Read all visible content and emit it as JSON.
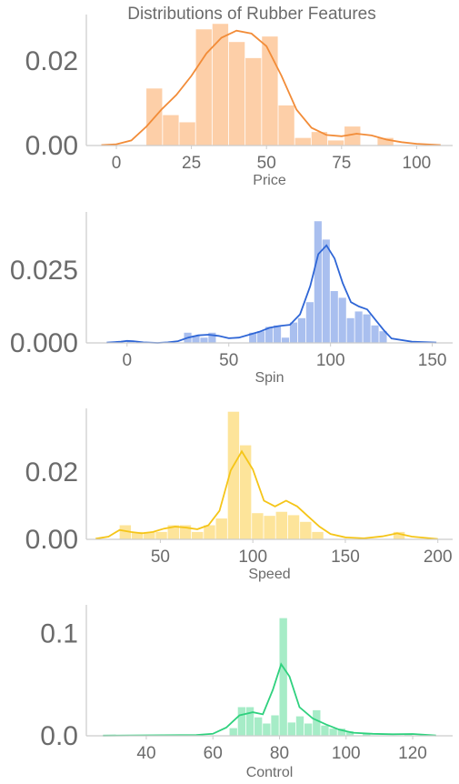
{
  "suptitle": "Distributions of Rubber Features",
  "chart_data": [
    {
      "type": "bar",
      "subtype": "histogram with KDE",
      "xlabel": "Price",
      "color": "#f28c38",
      "bar_color": "#fdcfa8",
      "xlim": [
        -10,
        112
      ],
      "ylim": [
        0,
        0.031
      ],
      "xticks": [
        0,
        25,
        50,
        75,
        100
      ],
      "xtick_labels": [
        "0",
        "25",
        "50",
        "75",
        "100"
      ],
      "yticks": [
        0.0,
        0.02
      ],
      "ytick_labels": [
        "0.00",
        "0.02"
      ],
      "bins": [
        {
          "x0": 10,
          "x1": 15.5,
          "y": 0.0135
        },
        {
          "x0": 15.5,
          "x1": 21,
          "y": 0.0072
        },
        {
          "x0": 21,
          "x1": 26.5,
          "y": 0.0055
        },
        {
          "x0": 26.5,
          "x1": 32,
          "y": 0.0275
        },
        {
          "x0": 32,
          "x1": 37.5,
          "y": 0.0288
        },
        {
          "x0": 37.5,
          "x1": 43,
          "y": 0.0245
        },
        {
          "x0": 43,
          "x1": 48.5,
          "y": 0.0207
        },
        {
          "x0": 48.5,
          "x1": 54,
          "y": 0.0258
        },
        {
          "x0": 54,
          "x1": 59.5,
          "y": 0.0095
        },
        {
          "x0": 59.5,
          "x1": 65,
          "y": 0.0018
        },
        {
          "x0": 65,
          "x1": 70.5,
          "y": 0.0032
        },
        {
          "x0": 70.5,
          "x1": 76,
          "y": 0.0012
        },
        {
          "x0": 76,
          "x1": 81.5,
          "y": 0.0045
        },
        {
          "x0": 81.5,
          "x1": 87,
          "y": 0.0
        },
        {
          "x0": 87,
          "x1": 92.5,
          "y": 0.0018
        }
      ],
      "kde": [
        [
          -5,
          0.0001
        ],
        [
          0,
          0.0003
        ],
        [
          5,
          0.0012
        ],
        [
          10,
          0.0045
        ],
        [
          15,
          0.0085
        ],
        [
          20,
          0.012
        ],
        [
          25,
          0.0165
        ],
        [
          30,
          0.0218
        ],
        [
          35,
          0.0255
        ],
        [
          40,
          0.0272
        ],
        [
          45,
          0.0265
        ],
        [
          50,
          0.0235
        ],
        [
          55,
          0.0165
        ],
        [
          60,
          0.0085
        ],
        [
          65,
          0.0042
        ],
        [
          70,
          0.0025
        ],
        [
          75,
          0.0022
        ],
        [
          80,
          0.0028
        ],
        [
          85,
          0.0024
        ],
        [
          90,
          0.0014
        ],
        [
          95,
          0.0008
        ],
        [
          100,
          0.0004
        ],
        [
          108,
          0.0001
        ]
      ]
    },
    {
      "type": "bar",
      "subtype": "histogram with KDE",
      "xlabel": "Spin",
      "color": "#2f66d6",
      "bar_color": "#a9bfef",
      "xlim": [
        -20,
        160
      ],
      "ylim": [
        0,
        0.045
      ],
      "xticks": [
        0,
        50,
        100,
        150
      ],
      "xtick_labels": [
        "0",
        "50",
        "100",
        "150"
      ],
      "yticks": [
        0.0,
        0.025
      ],
      "ytick_labels": [
        "0.000",
        "0.025"
      ],
      "bins": [
        {
          "x0": 0,
          "x1": 4,
          "y": 0.0005
        },
        {
          "x0": 4,
          "x1": 8,
          "y": 0.0
        },
        {
          "x0": 28,
          "x1": 32,
          "y": 0.0035
        },
        {
          "x0": 32,
          "x1": 36,
          "y": 0.0025
        },
        {
          "x0": 36,
          "x1": 40,
          "y": 0.0018
        },
        {
          "x0": 40,
          "x1": 44,
          "y": 0.0035
        },
        {
          "x0": 60,
          "x1": 64,
          "y": 0.0035
        },
        {
          "x0": 64,
          "x1": 68,
          "y": 0.004
        },
        {
          "x0": 68,
          "x1": 72,
          "y": 0.0055
        },
        {
          "x0": 72,
          "x1": 76,
          "y": 0.006
        },
        {
          "x0": 76,
          "x1": 80,
          "y": 0.0018
        },
        {
          "x0": 80,
          "x1": 84,
          "y": 0.007
        },
        {
          "x0": 84,
          "x1": 88,
          "y": 0.0085
        },
        {
          "x0": 88,
          "x1": 92,
          "y": 0.014
        },
        {
          "x0": 92,
          "x1": 96,
          "y": 0.0418
        },
        {
          "x0": 96,
          "x1": 100,
          "y": 0.0355
        },
        {
          "x0": 100,
          "x1": 104,
          "y": 0.0178
        },
        {
          "x0": 104,
          "x1": 108,
          "y": 0.0155
        },
        {
          "x0": 108,
          "x1": 112,
          "y": 0.0085
        },
        {
          "x0": 112,
          "x1": 116,
          "y": 0.0108
        },
        {
          "x0": 116,
          "x1": 120,
          "y": 0.0098
        },
        {
          "x0": 120,
          "x1": 124,
          "y": 0.006
        },
        {
          "x0": 124,
          "x1": 128,
          "y": 0.004
        }
      ],
      "kde": [
        [
          -10,
          0.0001
        ],
        [
          -3,
          0.0004
        ],
        [
          0,
          0.0007
        ],
        [
          3,
          0.0006
        ],
        [
          8,
          0.0002
        ],
        [
          15,
          0.0
        ],
        [
          20,
          0.0002
        ],
        [
          25,
          0.0006
        ],
        [
          30,
          0.0018
        ],
        [
          35,
          0.0026
        ],
        [
          40,
          0.0028
        ],
        [
          45,
          0.0024
        ],
        [
          50,
          0.0016
        ],
        [
          55,
          0.0018
        ],
        [
          60,
          0.0028
        ],
        [
          65,
          0.0038
        ],
        [
          70,
          0.0052
        ],
        [
          75,
          0.0058
        ],
        [
          80,
          0.0062
        ],
        [
          85,
          0.0098
        ],
        [
          90,
          0.0195
        ],
        [
          94,
          0.0305
        ],
        [
          98,
          0.0335
        ],
        [
          102,
          0.029
        ],
        [
          106,
          0.0205
        ],
        [
          110,
          0.014
        ],
        [
          114,
          0.0125
        ],
        [
          118,
          0.0115
        ],
        [
          122,
          0.008
        ],
        [
          126,
          0.0045
        ],
        [
          130,
          0.0015
        ],
        [
          140,
          0.0004
        ],
        [
          152,
          0.0001
        ]
      ]
    },
    {
      "type": "bar",
      "subtype": "histogram with KDE",
      "xlabel": "Speed",
      "color": "#f5c518",
      "bar_color": "#fde49a",
      "xlim": [
        10,
        208
      ],
      "ylim": [
        0,
        0.039
      ],
      "xticks": [
        50,
        100,
        150,
        200
      ],
      "xtick_labels": [
        "50",
        "100",
        "150",
        "200"
      ],
      "yticks": [
        0.0,
        0.02
      ],
      "ytick_labels": [
        "0.00",
        "0.02"
      ],
      "bins": [
        {
          "x0": 28,
          "x1": 34.5,
          "y": 0.0042
        },
        {
          "x0": 34.5,
          "x1": 41,
          "y": 0.0022
        },
        {
          "x0": 41,
          "x1": 47.5,
          "y": 0.0022
        },
        {
          "x0": 47.5,
          "x1": 54,
          "y": 0.0022
        },
        {
          "x0": 54,
          "x1": 60.5,
          "y": 0.0042
        },
        {
          "x0": 60.5,
          "x1": 67,
          "y": 0.0042
        },
        {
          "x0": 67,
          "x1": 73.5,
          "y": 0.0022
        },
        {
          "x0": 73.5,
          "x1": 80,
          "y": 0.0042
        },
        {
          "x0": 80,
          "x1": 86.5,
          "y": 0.0062
        },
        {
          "x0": 86.5,
          "x1": 93,
          "y": 0.038
        },
        {
          "x0": 93,
          "x1": 99.5,
          "y": 0.028
        },
        {
          "x0": 99.5,
          "x1": 106,
          "y": 0.0078
        },
        {
          "x0": 106,
          "x1": 112.5,
          "y": 0.007
        },
        {
          "x0": 112.5,
          "x1": 119,
          "y": 0.0082
        },
        {
          "x0": 119,
          "x1": 125.5,
          "y": 0.0072
        },
        {
          "x0": 125.5,
          "x1": 132,
          "y": 0.0052
        },
        {
          "x0": 132,
          "x1": 138.5,
          "y": 0.0022
        },
        {
          "x0": 176,
          "x1": 182.5,
          "y": 0.0022
        }
      ],
      "kde": [
        [
          15,
          0.0002
        ],
        [
          22,
          0.0008
        ],
        [
          28,
          0.0028
        ],
        [
          34,
          0.0022
        ],
        [
          40,
          0.0018
        ],
        [
          46,
          0.0022
        ],
        [
          52,
          0.0032
        ],
        [
          58,
          0.0038
        ],
        [
          64,
          0.0035
        ],
        [
          70,
          0.003
        ],
        [
          76,
          0.0042
        ],
        [
          82,
          0.0085
        ],
        [
          88,
          0.0205
        ],
        [
          94,
          0.0262
        ],
        [
          100,
          0.0208
        ],
        [
          106,
          0.0115
        ],
        [
          112,
          0.0098
        ],
        [
          118,
          0.0115
        ],
        [
          124,
          0.0098
        ],
        [
          130,
          0.0068
        ],
        [
          136,
          0.0038
        ],
        [
          142,
          0.0016
        ],
        [
          150,
          0.0006
        ],
        [
          160,
          0.0003
        ],
        [
          170,
          0.0009
        ],
        [
          178,
          0.0018
        ],
        [
          186,
          0.0008
        ],
        [
          200,
          0.0001
        ]
      ]
    },
    {
      "type": "bar",
      "subtype": "histogram with KDE",
      "xlabel": "Control",
      "color": "#2fd17e",
      "bar_color": "#a6ecc7",
      "xlim": [
        22,
        132
      ],
      "ylim": [
        0,
        0.128
      ],
      "xticks": [
        40,
        60,
        80,
        100,
        120
      ],
      "xtick_labels": [
        "40",
        "60",
        "80",
        "100",
        "120"
      ],
      "yticks": [
        0.0,
        0.1
      ],
      "ytick_labels": [
        "0.0",
        "0.1"
      ],
      "bins": [
        {
          "x0": 65,
          "x1": 67.5,
          "y": 0.0075
        },
        {
          "x0": 67.5,
          "x1": 70,
          "y": 0.028
        },
        {
          "x0": 70,
          "x1": 72.5,
          "y": 0.028
        },
        {
          "x0": 72.5,
          "x1": 75,
          "y": 0.018
        },
        {
          "x0": 75,
          "x1": 77.5,
          "y": 0.012
        },
        {
          "x0": 77.5,
          "x1": 80,
          "y": 0.02
        },
        {
          "x0": 80,
          "x1": 82.5,
          "y": 0.115
        },
        {
          "x0": 82.5,
          "x1": 85,
          "y": 0.013
        },
        {
          "x0": 85,
          "x1": 87.5,
          "y": 0.019
        },
        {
          "x0": 87.5,
          "x1": 90,
          "y": 0.012
        },
        {
          "x0": 90,
          "x1": 92.5,
          "y": 0.025
        },
        {
          "x0": 92.5,
          "x1": 95,
          "y": 0.01
        },
        {
          "x0": 95,
          "x1": 97.5,
          "y": 0.007
        },
        {
          "x0": 97.5,
          "x1": 100,
          "y": 0.007
        },
        {
          "x0": 100,
          "x1": 102.5,
          "y": 0.0045
        },
        {
          "x0": 105,
          "x1": 107.5,
          "y": 0.002
        },
        {
          "x0": 117.5,
          "x1": 120,
          "y": 0.002
        }
      ],
      "kde": [
        [
          27,
          0.0002
        ],
        [
          40,
          0.0004
        ],
        [
          55,
          0.0008
        ],
        [
          60,
          0.002
        ],
        [
          64,
          0.008
        ],
        [
          68,
          0.02
        ],
        [
          72,
          0.023
        ],
        [
          75,
          0.021
        ],
        [
          78,
          0.045
        ],
        [
          80.5,
          0.07
        ],
        [
          83,
          0.058
        ],
        [
          86,
          0.028
        ],
        [
          90,
          0.017
        ],
        [
          94,
          0.011
        ],
        [
          98,
          0.006
        ],
        [
          102,
          0.003
        ],
        [
          108,
          0.002
        ],
        [
          114,
          0.0015
        ],
        [
          120,
          0.0018
        ],
        [
          127,
          0.0003
        ]
      ]
    }
  ]
}
